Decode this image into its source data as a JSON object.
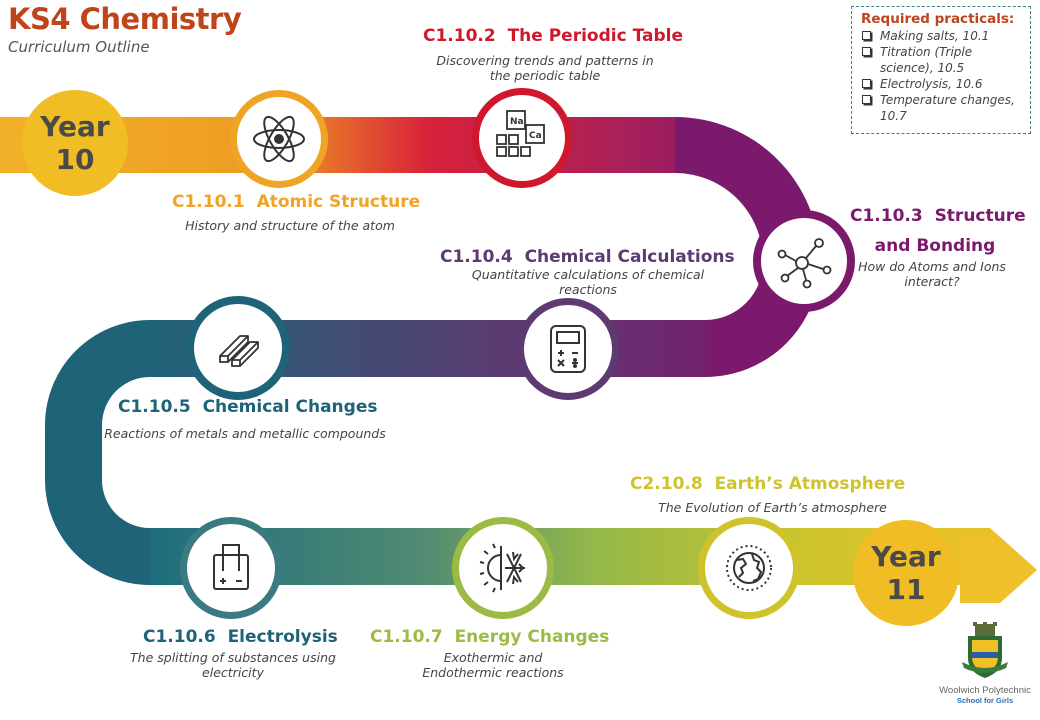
{
  "header": {
    "title": "KS4 Chemistry",
    "subtitle": "Curriculum Outline"
  },
  "start": {
    "label_line1": "Year",
    "label_line2": "10"
  },
  "end": {
    "label_line1": "Year",
    "label_line2": "11"
  },
  "practicals": {
    "title": "Required practicals:",
    "items": [
      "Making salts, 10.1",
      "Titration (Triple science), 10.5",
      "Electrolysis, 10.6",
      "Temperature changes, 10.7"
    ]
  },
  "topics": [
    {
      "code": "C1.10.1",
      "title": "Atomic Structure",
      "desc": "History and structure of the atom",
      "icon": "atom-icon",
      "color": "#f0a425"
    },
    {
      "code": "C1.10.2",
      "title": "The Periodic Table",
      "desc": "Discovering trends and patterns in the periodic table",
      "icon": "periodic-table-icon",
      "color": "#d0182d"
    },
    {
      "code": "C1.10.3",
      "title": "Structure and Bonding",
      "desc": "How do Atoms and Ions interact?",
      "icon": "molecule-icon",
      "color": "#7a1d6d"
    },
    {
      "code": "C1.10.4",
      "title": "Chemical Calculations",
      "desc": "Quantitative calculations of chemical reactions",
      "icon": "calculator-icon",
      "color": "#5e3a73"
    },
    {
      "code": "C1.10.5",
      "title": "Chemical Changes",
      "desc": "Reactions of metals and metallic compounds",
      "icon": "metal-bars-icon",
      "color": "#1f6378"
    },
    {
      "code": "C1.10.6",
      "title": "Electrolysis",
      "desc": "The splitting of substances using electricity",
      "icon": "battery-icon",
      "color": "#3a7a80"
    },
    {
      "code": "C1.10.7",
      "title": "Energy Changes",
      "desc": "Exothermic and Endothermic reactions",
      "icon": "hot-cold-icon",
      "color": "#9cbb45"
    },
    {
      "code": "C2.10.8",
      "title": "Earth’s Atmosphere",
      "desc": "The Evolution of Earth’s atmosphere",
      "icon": "globe-icon",
      "color": "#cfc32c"
    }
  ],
  "school": {
    "name": "Woolwich Polytechnic",
    "sub": "School for Girls",
    "icon": "school-crest-icon"
  }
}
